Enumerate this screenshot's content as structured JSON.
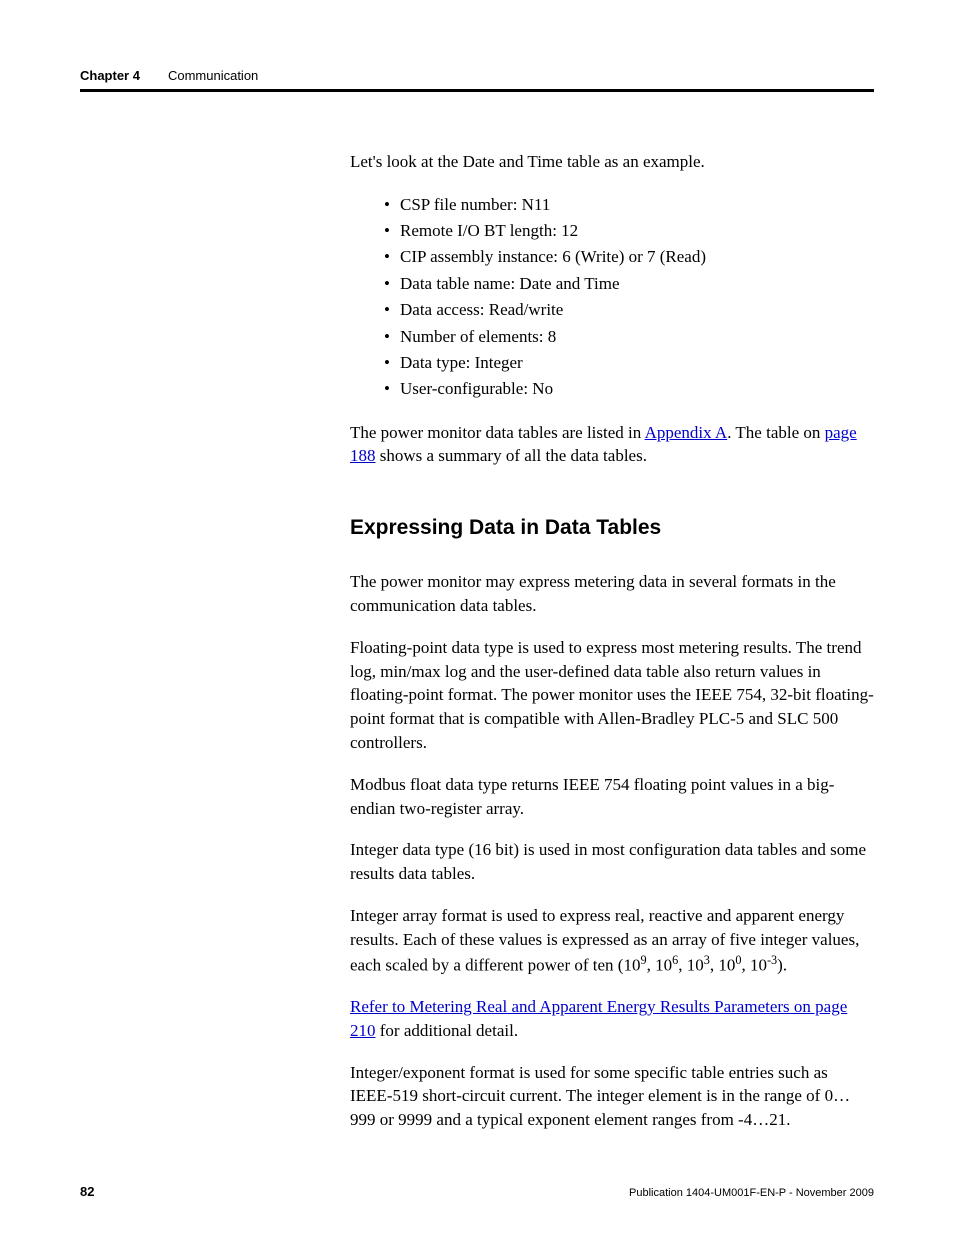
{
  "header": {
    "chapterLabel": "Chapter 4",
    "chapterTitle": "Communication"
  },
  "intro": "Let's look at the Date and Time table as an example.",
  "bullets": [
    "CSP file number: N11",
    "Remote I/O BT length: 12",
    "CIP assembly instance: 6 (Write) or 7 (Read)",
    "Data table name: Date and Time",
    "Data access: Read/write",
    "Number of elements: 8",
    "Data type: Integer",
    "User-configurable: No"
  ],
  "afterBullets": {
    "prefix": "The power monitor data tables are listed in ",
    "link1": "Appendix A",
    "mid": ". The table on ",
    "link2": "page 188",
    "suffix": " shows a summary of all the data tables."
  },
  "sectionHeading": "Expressing Data in Data Tables",
  "p1": "The power monitor may express metering data in several formats in the communication data tables.",
  "p2": "Floating-point data type is used to express most metering results. The trend log, min/max log and the user-defined data table also return values in floating-point format. The power monitor uses the IEEE 754, 32-bit floating-point format that is compatible with Allen-Bradley PLC-5 and SLC 500 controllers.",
  "p3": "Modbus float data type returns IEEE 754 floating point values in a big-endian two-register array.",
  "p4": "Integer data type (16 bit) is used in most configuration data tables and some results data tables.",
  "p5": {
    "prefix": "Integer array format is used to express real, reactive and apparent energy results. Each of these values is expressed as an array of five integer values, each scaled by a different power of ten (10",
    "e1": "9",
    "s1": ", 10",
    "e2": "6",
    "s2": ", 10",
    "e3": "3",
    "s3": ", 10",
    "e4": "0",
    "s4": ", 10",
    "e5": "-3",
    "suffix": ")."
  },
  "p6": {
    "link": "Refer to  Metering Real and Apparent Energy Results Parameters on page 210",
    "suffix": " for additional detail."
  },
  "p7": "Integer/exponent format is used for some specific table entries such as IEEE-519 short-circuit current. The integer element is in the range of 0…999 or 9999 and a typical exponent element ranges from -4…21.",
  "footer": {
    "pageNumber": "82",
    "publication": "Publication 1404-UM001F-EN-P - November 2009"
  },
  "colors": {
    "text": "#000000",
    "link": "#0000cc",
    "background": "#ffffff",
    "rule": "#000000"
  }
}
